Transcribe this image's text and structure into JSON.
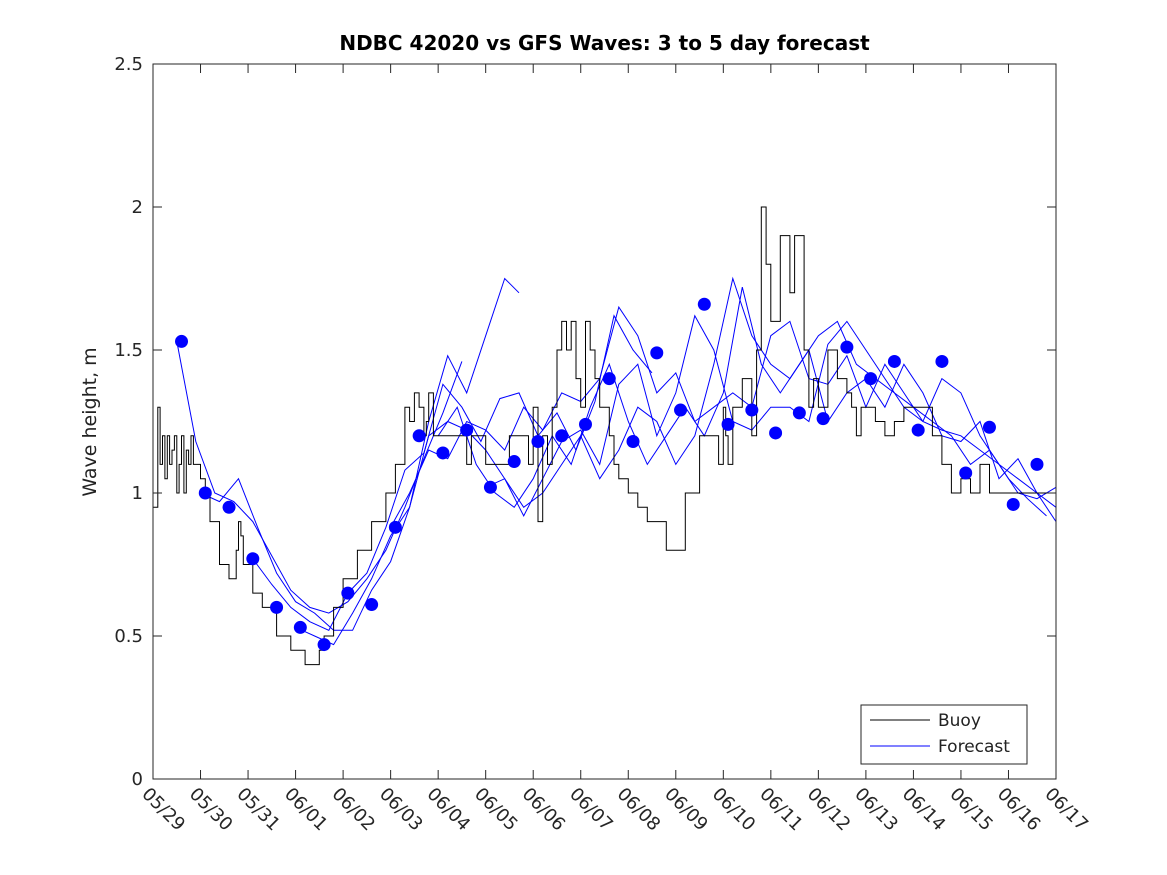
{
  "chart_data": {
    "type": "line",
    "title": "NDBC 42020 vs GFS Waves: 3 to 5 day forecast",
    "xlabel": "",
    "ylabel": "Wave height, m",
    "ylim": [
      0,
      2.5
    ],
    "yticks": [
      0,
      0.5,
      1,
      1.5,
      2,
      2.5
    ],
    "ytick_labels": [
      "0",
      "0.5",
      "1",
      "1.5",
      "2",
      "2.5"
    ],
    "xlim": [
      0,
      19
    ],
    "xticks": [
      0,
      1,
      2,
      3,
      4,
      5,
      6,
      7,
      8,
      9,
      10,
      11,
      12,
      13,
      14,
      15,
      16,
      17,
      18,
      19
    ],
    "xtick_labels": [
      "05/29",
      "05/30",
      "05/31",
      "06/01",
      "06/02",
      "06/03",
      "06/04",
      "06/05",
      "06/06",
      "06/07",
      "06/08",
      "06/09",
      "06/10",
      "06/11",
      "06/12",
      "06/13",
      "06/14",
      "06/15",
      "06/16",
      "06/17"
    ],
    "grid": false,
    "legend": {
      "position": "bottom-right",
      "entries": [
        "Buoy",
        "Forecast"
      ]
    },
    "colors": {
      "buoy": "#000000",
      "forecast": "#0000ff",
      "markers": "#0000ff"
    },
    "series": [
      {
        "name": "Buoy",
        "x": [
          0.0,
          0.1,
          0.15,
          0.2,
          0.25,
          0.3,
          0.35,
          0.4,
          0.45,
          0.5,
          0.55,
          0.6,
          0.65,
          0.7,
          0.75,
          0.8,
          0.85,
          0.9,
          0.95,
          1.0,
          1.1,
          1.2,
          1.4,
          1.6,
          1.75,
          1.8,
          1.85,
          1.9,
          2.1,
          2.3,
          2.6,
          2.9,
          3.2,
          3.4,
          3.5,
          3.6,
          3.8,
          4.0,
          4.3,
          4.6,
          4.9,
          5.1,
          5.3,
          5.4,
          5.5,
          5.6,
          5.7,
          5.75,
          5.8,
          5.9,
          6.0,
          6.2,
          6.4,
          6.5,
          6.6,
          6.7,
          7.0,
          7.5,
          7.9,
          8.0,
          8.1,
          8.2,
          8.3,
          8.4,
          8.5,
          8.6,
          8.7,
          8.8,
          8.9,
          9.0,
          9.1,
          9.2,
          9.3,
          9.4,
          9.6,
          9.7,
          9.8,
          10.0,
          10.2,
          10.4,
          10.6,
          10.8,
          11.2,
          11.5,
          11.9,
          12.0,
          12.05,
          12.1,
          12.2,
          12.4,
          12.6,
          12.7,
          12.8,
          12.9,
          13.0,
          13.2,
          13.4,
          13.5,
          13.7,
          13.8,
          13.9,
          14.0,
          14.2,
          14.4,
          14.6,
          14.7,
          14.8,
          14.9,
          15.0,
          15.2,
          15.4,
          15.6,
          15.8,
          16.0,
          16.2,
          16.4,
          16.6,
          16.8,
          17.0,
          17.2,
          17.4,
          17.6,
          17.8,
          18.0,
          18.2,
          18.4,
          18.6,
          18.8,
          19.0
        ],
        "y": [
          0.95,
          1.3,
          1.1,
          1.2,
          1.05,
          1.2,
          1.1,
          1.15,
          1.2,
          1.0,
          1.1,
          1.2,
          1.0,
          1.15,
          1.1,
          1.2,
          1.1,
          1.1,
          1.1,
          1.05,
          1.0,
          0.9,
          0.75,
          0.7,
          0.8,
          0.9,
          0.85,
          0.75,
          0.65,
          0.6,
          0.5,
          0.45,
          0.4,
          0.4,
          0.45,
          0.5,
          0.6,
          0.7,
          0.8,
          0.9,
          1.0,
          1.1,
          1.3,
          1.25,
          1.35,
          1.3,
          1.2,
          1.25,
          1.35,
          1.2,
          1.2,
          1.2,
          1.2,
          1.2,
          1.1,
          1.2,
          1.1,
          1.2,
          1.1,
          1.3,
          0.9,
          1.2,
          1.1,
          1.3,
          1.5,
          1.6,
          1.5,
          1.6,
          1.4,
          1.3,
          1.6,
          1.5,
          1.4,
          1.3,
          1.2,
          1.1,
          1.05,
          1.0,
          0.95,
          0.9,
          0.9,
          0.8,
          1.0,
          1.2,
          1.1,
          1.3,
          1.2,
          1.1,
          1.3,
          1.4,
          1.2,
          1.5,
          2.0,
          1.8,
          1.6,
          1.9,
          1.7,
          1.9,
          1.5,
          1.3,
          1.4,
          1.3,
          1.5,
          1.4,
          1.35,
          1.3,
          1.2,
          1.3,
          1.3,
          1.25,
          1.2,
          1.25,
          1.3,
          1.3,
          1.3,
          1.2,
          1.1,
          1.0,
          1.05,
          1.0,
          1.1,
          1.0,
          1.0,
          1.0,
          1.0,
          1.0,
          1.0,
          1.0,
          1.0
        ]
      },
      {
        "name": "Forecast",
        "runs": [
          {
            "x": [
              0.5,
              0.9,
              1.3,
              1.7,
              2.1,
              2.5,
              2.9,
              3.3,
              3.7,
              4.1,
              4.5,
              4.9,
              5.3,
              5.7,
              6.1,
              6.5
            ],
            "y": [
              1.53,
              1.18,
              1.0,
              0.97,
              0.9,
              0.78,
              0.66,
              0.6,
              0.58,
              0.62,
              0.7,
              0.8,
              0.95,
              1.12,
              1.28,
              1.46
            ]
          },
          {
            "x": [
              1.0,
              1.4,
              1.8,
              2.2,
              2.6,
              3.0,
              3.4,
              3.8,
              4.2,
              4.6,
              5.0,
              5.4,
              5.8,
              6.2,
              6.6,
              7.0,
              7.4,
              7.7
            ],
            "y": [
              1.0,
              0.97,
              1.05,
              0.88,
              0.72,
              0.62,
              0.58,
              0.52,
              0.52,
              0.66,
              0.76,
              0.95,
              1.25,
              1.48,
              1.35,
              1.55,
              1.75,
              1.7
            ]
          },
          {
            "x": [
              2.1,
              2.5,
              2.9,
              3.3,
              3.7,
              4.1,
              4.5,
              4.9,
              5.3,
              5.7,
              6.1,
              6.5,
              6.9,
              7.3,
              7.7,
              8.1,
              8.5,
              8.9,
              9.3,
              9.7,
              10.1,
              10.5
            ],
            "y": [
              0.77,
              0.68,
              0.6,
              0.55,
              0.52,
              0.65,
              0.72,
              0.88,
              1.08,
              1.14,
              1.38,
              1.3,
              1.18,
              1.33,
              1.35,
              1.2,
              1.28,
              1.15,
              1.32,
              1.62,
              1.5,
              1.42
            ]
          },
          {
            "x": [
              3.0,
              3.4,
              3.8,
              4.2,
              4.6,
              5.0,
              5.4,
              5.8,
              6.2,
              6.6,
              7.0,
              7.4,
              7.8,
              8.2,
              8.6,
              9.0,
              9.4,
              9.8,
              10.2,
              10.6,
              11.0,
              11.4,
              11.8,
              12.2,
              12.6,
              13.0,
              13.4,
              13.8,
              14.2,
              14.6,
              15.0,
              15.4,
              15.8,
              16.2,
              16.6,
              17.0,
              17.4,
              17.8,
              18.2,
              18.6,
              19.0
            ],
            "y": [
              0.53,
              0.5,
              0.47,
              0.58,
              0.7,
              0.85,
              0.95,
              1.2,
              1.25,
              1.22,
              1.15,
              1.05,
              0.92,
              1.05,
              1.18,
              1.22,
              1.1,
              1.38,
              1.45,
              1.2,
              1.35,
              1.62,
              1.5,
              1.25,
              1.22,
              1.3,
              1.3,
              1.25,
              1.52,
              1.6,
              1.5,
              1.4,
              1.3,
              1.25,
              1.4,
              1.35,
              1.2,
              1.1,
              1.0,
              0.98,
              1.02
            ]
          },
          {
            "x": [
              5.0,
              5.4,
              5.8,
              6.2,
              6.6,
              7.0,
              7.4,
              7.8,
              8.2,
              8.6,
              9.0,
              9.4,
              9.8,
              10.2,
              10.6,
              11.0,
              11.4,
              11.8,
              12.2,
              12.6,
              13.0,
              13.4,
              13.8,
              14.2,
              14.6,
              15.0,
              15.4,
              15.8,
              16.2,
              16.6,
              17.0,
              17.4,
              17.8,
              18.2,
              18.6,
              19.0
            ],
            "y": [
              0.88,
              1.0,
              1.15,
              1.12,
              1.25,
              1.22,
              1.15,
              1.3,
              1.22,
              1.35,
              1.32,
              1.4,
              1.65,
              1.55,
              1.35,
              1.42,
              1.25,
              1.3,
              1.35,
              1.3,
              1.55,
              1.6,
              1.4,
              1.38,
              1.48,
              1.3,
              1.45,
              1.35,
              1.25,
              1.22,
              1.2,
              1.15,
              1.1,
              1.05,
              1.0,
              0.95
            ]
          },
          {
            "x": [
              6.0,
              6.4,
              6.8,
              7.2,
              7.6,
              8.0,
              8.4,
              8.8,
              9.2,
              9.6,
              10.0,
              10.4,
              10.8,
              11.2,
              11.6,
              12.0,
              12.4,
              12.8,
              13.2,
              13.6,
              14.0,
              14.4,
              14.8,
              15.2,
              15.6,
              16.0,
              16.4,
              16.8,
              17.2,
              17.6,
              18.0,
              18.4,
              18.8
            ],
            "y": [
              1.2,
              1.3,
              1.1,
              1.0,
              0.95,
              1.05,
              1.2,
              1.1,
              1.3,
              1.45,
              1.25,
              1.1,
              1.2,
              1.3,
              1.2,
              1.35,
              1.72,
              1.45,
              1.35,
              1.45,
              1.55,
              1.6,
              1.45,
              1.4,
              1.35,
              1.3,
              1.25,
              1.2,
              1.1,
              1.15,
              1.05,
              0.98,
              0.92
            ]
          },
          {
            "x": [
              7.0,
              7.4,
              7.8,
              8.2,
              8.6,
              9.0,
              9.4,
              9.8,
              10.2,
              10.6,
              11.0,
              11.4,
              11.8,
              12.2,
              12.6,
              13.0,
              13.4,
              13.8,
              14.2,
              14.6,
              15.0,
              15.4,
              15.8,
              16.2,
              16.6,
              17.0,
              17.4,
              17.8,
              18.2,
              18.6,
              19.0
            ],
            "y": [
              1.02,
              1.05,
              0.95,
              1.0,
              1.1,
              1.2,
              1.05,
              1.15,
              1.3,
              1.25,
              1.1,
              1.2,
              1.45,
              1.75,
              1.55,
              1.45,
              1.4,
              1.5,
              1.25,
              1.35,
              1.4,
              1.3,
              1.45,
              1.35,
              1.2,
              1.18,
              1.25,
              1.05,
              1.12,
              1.0,
              0.9
            ]
          }
        ]
      },
      {
        "name": "Forecast markers",
        "x": [
          0.6,
          1.1,
          1.6,
          2.1,
          2.6,
          3.1,
          3.6,
          4.1,
          4.6,
          5.1,
          5.6,
          6.1,
          6.6,
          7.1,
          7.6,
          8.1,
          8.6,
          9.1,
          9.6,
          10.1,
          10.6,
          11.1,
          11.6,
          12.1,
          12.6,
          13.1,
          13.6,
          14.1,
          14.6,
          15.1,
          15.6,
          16.1,
          16.6,
          17.1,
          17.6,
          18.1,
          18.6
        ],
        "y": [
          1.53,
          1.0,
          0.95,
          0.77,
          0.6,
          0.53,
          0.47,
          0.65,
          0.61,
          0.88,
          1.2,
          1.14,
          1.22,
          1.02,
          1.11,
          1.18,
          1.2,
          1.24,
          1.4,
          1.18,
          1.49,
          1.29,
          1.66,
          1.24,
          1.29,
          1.21,
          1.28,
          1.26,
          1.51,
          1.4,
          1.46,
          1.22,
          1.46,
          1.07,
          1.23,
          0.96,
          1.1
        ]
      }
    ]
  }
}
